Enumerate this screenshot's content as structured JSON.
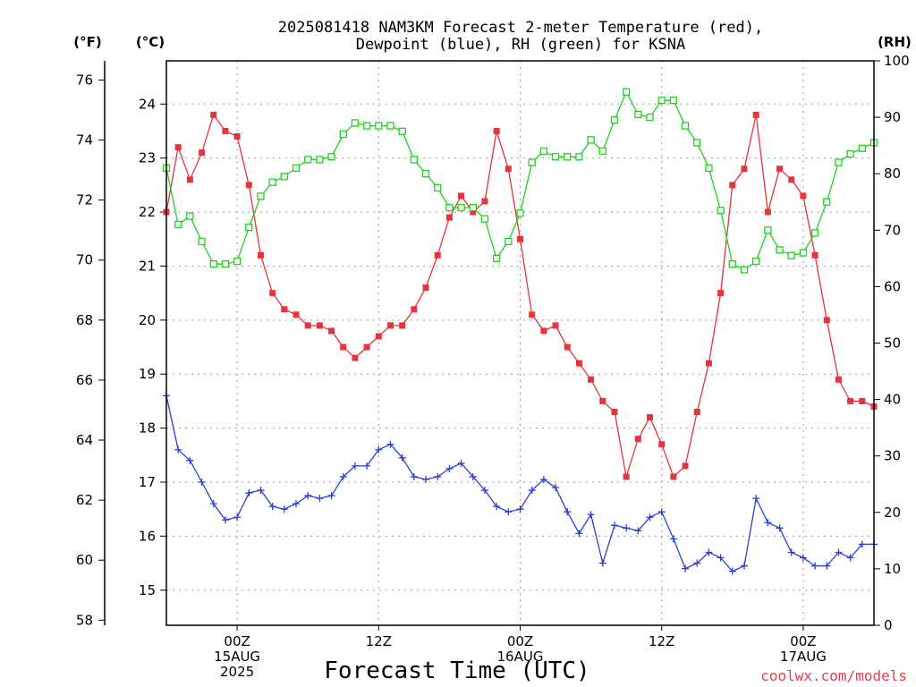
{
  "title": {
    "line1": "2025081418 NAM3KM Forecast 2-meter Temperature (red),",
    "line2": "Dewpoint (blue), RH (green) for KSNA"
  },
  "units": {
    "fahrenheit": "(°F)",
    "celsius": "(°C)",
    "rh": "(RH)"
  },
  "xlabel": "Forecast Time (UTC)",
  "credit": "coolwx.com/models",
  "colors": {
    "temperature": "#e8323c",
    "dewpoint": "#2a3fd6",
    "rh": "#1ed21e"
  },
  "chart_data": {
    "type": "line",
    "grid": true,
    "x_unit": "forecast hours from 2025-08-14 18Z",
    "x": [
      0,
      1,
      2,
      3,
      4,
      5,
      6,
      7,
      8,
      9,
      10,
      11,
      12,
      13,
      14,
      15,
      16,
      17,
      18,
      19,
      20,
      21,
      22,
      23,
      24,
      25,
      26,
      27,
      28,
      29,
      30,
      31,
      32,
      33,
      34,
      35,
      36,
      37,
      38,
      39,
      40,
      41,
      42,
      43,
      44,
      45,
      46,
      47,
      48,
      49,
      50,
      51,
      52,
      53,
      54,
      55,
      56,
      57,
      58,
      59,
      60
    ],
    "xlim": [
      0,
      60
    ],
    "x_ticks": [
      {
        "x": 6,
        "lines": [
          "00Z",
          "15AUG",
          "2025"
        ]
      },
      {
        "x": 18,
        "lines": [
          "12Z"
        ]
      },
      {
        "x": 30,
        "lines": [
          "00Z",
          "16AUG"
        ]
      },
      {
        "x": 42,
        "lines": [
          "12Z"
        ]
      },
      {
        "x": 54,
        "lines": [
          "00Z",
          "17AUG"
        ]
      }
    ],
    "axes": {
      "fahrenheit": {
        "ticks": [
          58,
          60,
          62,
          64,
          66,
          68,
          70,
          72,
          74,
          76
        ]
      },
      "celsius": {
        "ylim": [
          14.35,
          24.8
        ],
        "ticks": [
          15,
          16,
          17,
          18,
          19,
          20,
          21,
          22,
          23,
          24
        ]
      },
      "rh": {
        "ylim": [
          0,
          100
        ],
        "ticks": [
          0,
          10,
          20,
          30,
          40,
          50,
          60,
          70,
          80,
          90,
          100
        ]
      }
    },
    "series": [
      {
        "axis": "celsius",
        "marker": "filled-square",
        "values": [
          22.0,
          23.2,
          22.6,
          23.1,
          23.8,
          23.5,
          23.4,
          22.5,
          21.2,
          20.5,
          20.2,
          20.1,
          19.9,
          19.9,
          19.8,
          19.5,
          19.3,
          19.5,
          19.7,
          19.9,
          19.9,
          20.2,
          20.6,
          21.2,
          21.9,
          22.3,
          22.0,
          22.2,
          23.5,
          22.8,
          21.5,
          20.1,
          19.8,
          19.9,
          19.5,
          19.2,
          18.9,
          18.5,
          18.3,
          17.1,
          17.8,
          18.2,
          17.7,
          17.1,
          17.3,
          18.3,
          19.2,
          20.5,
          22.5,
          22.8,
          23.8,
          22.0,
          22.8,
          22.6,
          22.3,
          21.2,
          20.0,
          18.9,
          18.5,
          18.5,
          18.4
        ]
      },
      {
        "axis": "celsius",
        "marker": "plus",
        "values": [
          18.6,
          17.6,
          17.4,
          17.0,
          16.6,
          16.3,
          16.35,
          16.8,
          16.85,
          16.55,
          16.5,
          16.6,
          16.75,
          16.7,
          16.75,
          17.1,
          17.3,
          17.3,
          17.6,
          17.7,
          17.45,
          17.1,
          17.05,
          17.1,
          17.25,
          17.35,
          17.1,
          16.85,
          16.55,
          16.45,
          16.5,
          16.85,
          17.05,
          16.9,
          16.45,
          16.05,
          16.4,
          15.5,
          16.2,
          16.15,
          16.1,
          16.35,
          16.45,
          15.95,
          15.4,
          15.5,
          15.7,
          15.6,
          15.35,
          15.45,
          16.7,
          16.25,
          16.15,
          15.7,
          15.6,
          15.45,
          15.45,
          15.7,
          15.6,
          15.85,
          15.85
        ]
      },
      {
        "axis": "rh",
        "marker": "open-square",
        "values": [
          81,
          71,
          72.5,
          68,
          64,
          64,
          64.5,
          70.5,
          76,
          78.5,
          79.5,
          81,
          82.5,
          82.5,
          83,
          87,
          89,
          88.5,
          88.5,
          88.5,
          87.5,
          82.5,
          80,
          77.5,
          74,
          74,
          74,
          72,
          65,
          68,
          73,
          82,
          84,
          83,
          83,
          83,
          86,
          84,
          89.5,
          94.5,
          90.5,
          90,
          93,
          93,
          88.5,
          85.5,
          81,
          73.5,
          64,
          63,
          64.5,
          70,
          66.5,
          65.5,
          66,
          69.5,
          75,
          82,
          83.5,
          84.5,
          85.5
        ]
      }
    ]
  }
}
